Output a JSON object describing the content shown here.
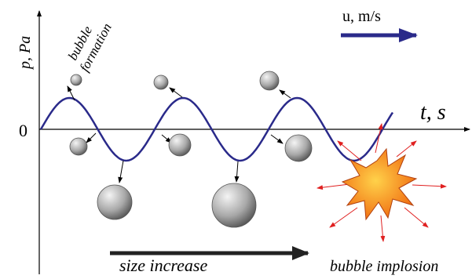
{
  "y_axis_label": "p, Pa",
  "annotation_formation": [
    "bubble",
    "formation"
  ],
  "velocity_label": "u, m/s",
  "x_axis_label": "t, s",
  "origin_label": "0",
  "size_label": "size increase",
  "implosion_label": "bubble implosion"
}
